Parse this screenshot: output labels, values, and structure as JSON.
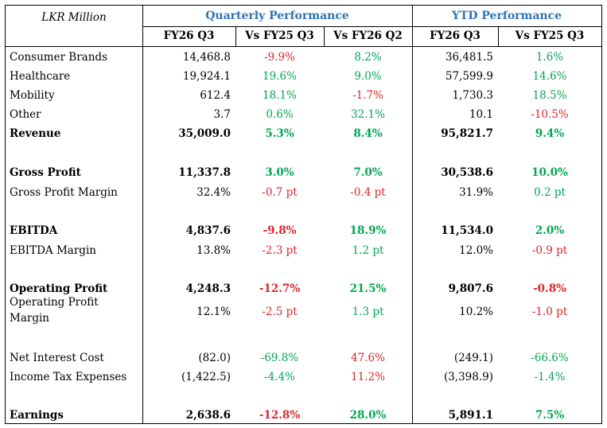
{
  "header": {
    "unit_label": "LKR Million",
    "group_quarterly": "Quarterly Performance",
    "group_ytd": "YTD Performance",
    "cols": [
      "FY26 Q3",
      "Vs FY25 Q3",
      "Vs FY26 Q2",
      "FY26 Q3",
      "Vs FY25 Q3"
    ]
  },
  "colors": {
    "positive": "#00A651",
    "negative": "#E0242A",
    "header_blue": "#2E74B5"
  },
  "rows": [
    {
      "label": "Consumer Brands",
      "bold": false,
      "vals": [
        "14,468.8",
        "-9.9%",
        "8.2%",
        "36,481.5",
        "1.6%"
      ],
      "tone": [
        "",
        "r",
        "g",
        "",
        "g"
      ]
    },
    {
      "label": "Healthcare",
      "bold": false,
      "vals": [
        "19,924.1",
        "19.6%",
        "9.0%",
        "57,599.9",
        "14.6%"
      ],
      "tone": [
        "",
        "g",
        "g",
        "",
        "g"
      ]
    },
    {
      "label": "Mobility",
      "bold": false,
      "vals": [
        "612.4",
        "18.1%",
        "-1.7%",
        "1,730.3",
        "18.5%"
      ],
      "tone": [
        "",
        "g",
        "r",
        "",
        "g"
      ]
    },
    {
      "label": "Other",
      "bold": false,
      "vals": [
        "3.7",
        "0.6%",
        "32.1%",
        "10.1",
        "-10.5%"
      ],
      "tone": [
        "",
        "g",
        "g",
        "",
        "r"
      ]
    },
    {
      "label": "Revenue",
      "bold": true,
      "vals": [
        "35,009.0",
        "5.3%",
        "8.4%",
        "95,821.7",
        "9.4%"
      ],
      "tone": [
        "",
        "g",
        "g",
        "",
        "g"
      ]
    },
    {
      "label": "Gross Profit",
      "bold": true,
      "vals": [
        "11,337.8",
        "3.0%",
        "7.0%",
        "30,538.6",
        "10.0%"
      ],
      "tone": [
        "",
        "g",
        "g",
        "",
        "g"
      ]
    },
    {
      "label": "Gross Profit Margin",
      "bold": false,
      "vals": [
        "32.4%",
        "-0.7 pt",
        "-0.4 pt",
        "31.9%",
        "0.2 pt"
      ],
      "tone": [
        "",
        "r",
        "r",
        "",
        "g"
      ]
    },
    {
      "label": "EBITDA",
      "bold": true,
      "vals": [
        "4,837.6",
        "-9.8%",
        "18.9%",
        "11,534.0",
        "2.0%"
      ],
      "tone": [
        "",
        "r",
        "g",
        "",
        "g"
      ]
    },
    {
      "label": "EBITDA Margin",
      "bold": false,
      "vals": [
        "13.8%",
        "-2.3 pt",
        "1.2 pt",
        "12.0%",
        "-0.9 pt"
      ],
      "tone": [
        "",
        "r",
        "g",
        "",
        "r"
      ]
    },
    {
      "label": "Operating Profit",
      "bold": true,
      "vals": [
        "4,248.3",
        "-12.7%",
        "21.5%",
        "9,807.6",
        "-0.8%"
      ],
      "tone": [
        "",
        "r",
        "g",
        "",
        "r"
      ]
    },
    {
      "label": "Operating Profit Margin",
      "label_lines": [
        "Operating Profit",
        "Margin"
      ],
      "bold": false,
      "vals": [
        "12.1%",
        "-2.5 pt",
        "1.3 pt",
        "10.2%",
        "-1.0 pt"
      ],
      "tone": [
        "",
        "r",
        "g",
        "",
        "r"
      ]
    },
    {
      "label": "Net Interest Cost",
      "bold": false,
      "vals": [
        "(82.0)",
        "-69.8%",
        "47.6%",
        "(249.1)",
        "-66.6%"
      ],
      "tone": [
        "",
        "g",
        "r",
        "",
        "g"
      ]
    },
    {
      "label": "Income Tax Expenses",
      "bold": false,
      "vals": [
        "(1,422.5)",
        "-4.4%",
        "11.2%",
        "(3,398.9)",
        "-1.4%"
      ],
      "tone": [
        "",
        "g",
        "r",
        "",
        "g"
      ]
    },
    {
      "label": "Earnings",
      "bold": true,
      "vals": [
        "2,638.6",
        "-12.8%",
        "28.0%",
        "5,891.1",
        "7.5%"
      ],
      "tone": [
        "",
        "r",
        "g",
        "",
        "g"
      ]
    }
  ]
}
